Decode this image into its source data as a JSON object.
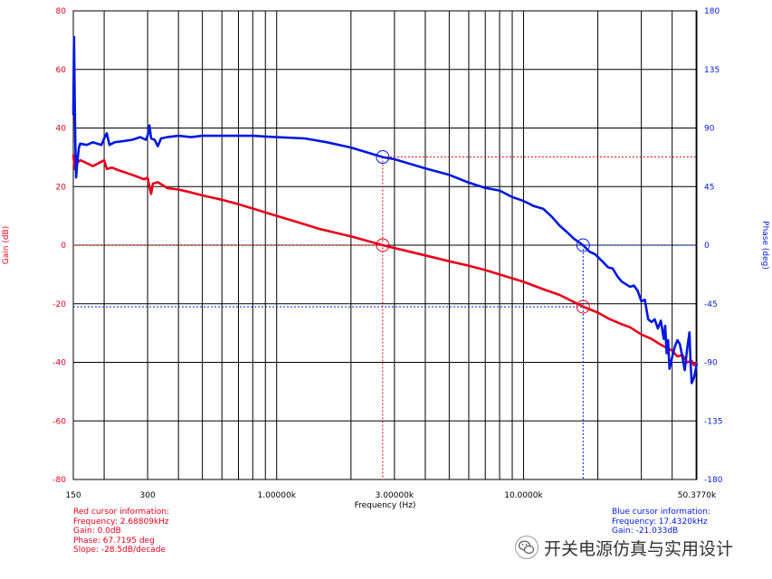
{
  "chart_data": {
    "type": "line",
    "xlabel": "Frequency (Hz)",
    "ylabel_left": "Gain (dB)",
    "ylabel_right": "Phase (deg)",
    "x_scale": "log",
    "xlim_hz": [
      150,
      50377
    ],
    "ylim_left": [
      -80,
      80
    ],
    "ylim_right": [
      -180,
      180
    ],
    "grid": true,
    "x_ticks": [
      {
        "hz": 150,
        "label": "150"
      },
      {
        "hz": 300,
        "label": "300"
      },
      {
        "hz": 1000,
        "label": "1.00000k"
      },
      {
        "hz": 3000,
        "label": "3.00000k"
      },
      {
        "hz": 10000,
        "label": "10.0000k"
      },
      {
        "hz": 50377,
        "label": "50.3770k"
      }
    ],
    "y_ticks_left": [
      "80",
      "60",
      "40",
      "20",
      "0",
      "-20",
      "-40",
      "-60",
      "-80"
    ],
    "y_ticks_right": [
      "180",
      "135",
      "90",
      "45",
      "0",
      "-45",
      "-90",
      "-135",
      "-180"
    ],
    "series": [
      {
        "name": "Gain",
        "axis": "left",
        "color": "#e8001a",
        "points": [
          [
            150,
            31
          ],
          [
            152,
            26
          ],
          [
            155,
            28
          ],
          [
            160,
            29
          ],
          [
            170,
            28
          ],
          [
            180,
            27
          ],
          [
            190,
            28
          ],
          [
            200,
            29
          ],
          [
            205,
            26
          ],
          [
            215,
            26.5
          ],
          [
            230,
            25.5
          ],
          [
            250,
            24.5
          ],
          [
            270,
            23.5
          ],
          [
            290,
            22.5
          ],
          [
            300,
            23
          ],
          [
            305,
            20
          ],
          [
            310,
            17.5
          ],
          [
            315,
            21
          ],
          [
            330,
            21.5
          ],
          [
            345,
            20.5
          ],
          [
            360,
            19.5
          ],
          [
            400,
            19
          ],
          [
            450,
            18
          ],
          [
            500,
            17
          ],
          [
            600,
            15.5
          ],
          [
            700,
            14
          ],
          [
            800,
            12.5
          ],
          [
            1000,
            10
          ],
          [
            1200,
            8
          ],
          [
            1500,
            5.5
          ],
          [
            2000,
            3
          ],
          [
            2688.09,
            0
          ],
          [
            3000,
            -1
          ],
          [
            4000,
            -3.5
          ],
          [
            5000,
            -5.5
          ],
          [
            6000,
            -7
          ],
          [
            7000,
            -8.5
          ],
          [
            8000,
            -10
          ],
          [
            10000,
            -12.5
          ],
          [
            12000,
            -15
          ],
          [
            14000,
            -17
          ],
          [
            17432,
            -21
          ],
          [
            20000,
            -23
          ],
          [
            22000,
            -25
          ],
          [
            25000,
            -27
          ],
          [
            27000,
            -28
          ],
          [
            30000,
            -30.5
          ],
          [
            33000,
            -32
          ],
          [
            36000,
            -34
          ],
          [
            38000,
            -35
          ],
          [
            40000,
            -36
          ],
          [
            42000,
            -38
          ],
          [
            44000,
            -37.5
          ],
          [
            46000,
            -40
          ],
          [
            48000,
            -39.5
          ],
          [
            49000,
            -41
          ],
          [
            50377,
            -40
          ]
        ]
      },
      {
        "name": "Phase",
        "axis": "right",
        "color": "#0019e0",
        "points": [
          [
            150,
            100
          ],
          [
            151,
            160
          ],
          [
            152,
            110
          ],
          [
            153,
            75
          ],
          [
            154,
            52
          ],
          [
            156,
            65
          ],
          [
            158,
            75
          ],
          [
            160,
            78
          ],
          [
            170,
            77
          ],
          [
            180,
            79
          ],
          [
            195,
            77
          ],
          [
            200,
            82
          ],
          [
            205,
            86
          ],
          [
            210,
            77
          ],
          [
            220,
            79
          ],
          [
            240,
            80
          ],
          [
            260,
            81
          ],
          [
            280,
            83
          ],
          [
            295,
            81
          ],
          [
            300,
            84
          ],
          [
            305,
            92
          ],
          [
            310,
            82
          ],
          [
            320,
            81
          ],
          [
            330,
            76
          ],
          [
            340,
            82
          ],
          [
            360,
            83
          ],
          [
            400,
            84
          ],
          [
            450,
            83
          ],
          [
            500,
            84
          ],
          [
            600,
            84
          ],
          [
            700,
            84
          ],
          [
            800,
            84
          ],
          [
            900,
            83.5
          ],
          [
            1000,
            83
          ],
          [
            1300,
            82
          ],
          [
            1600,
            79
          ],
          [
            2000,
            75
          ],
          [
            2688.09,
            67.72
          ],
          [
            3000,
            66
          ],
          [
            4000,
            59
          ],
          [
            5000,
            54
          ],
          [
            6000,
            48
          ],
          [
            7000,
            44
          ],
          [
            8000,
            42
          ],
          [
            9000,
            37
          ],
          [
            10000,
            34
          ],
          [
            11000,
            30
          ],
          [
            12000,
            28
          ],
          [
            13000,
            22
          ],
          [
            14000,
            15
          ],
          [
            15000,
            10
          ],
          [
            16000,
            5
          ],
          [
            17432,
            0
          ],
          [
            18500,
            -5
          ],
          [
            19500,
            -7
          ],
          [
            21000,
            -13
          ],
          [
            22000,
            -17
          ],
          [
            23000,
            -18
          ],
          [
            24000,
            -24
          ],
          [
            25000,
            -28
          ],
          [
            26000,
            -30
          ],
          [
            27000,
            -32
          ],
          [
            28000,
            -31
          ],
          [
            29000,
            -35
          ],
          [
            30000,
            -43
          ],
          [
            31000,
            -42
          ],
          [
            32000,
            -57
          ],
          [
            33000,
            -59
          ],
          [
            34000,
            -57
          ],
          [
            35000,
            -64
          ],
          [
            36000,
            -58
          ],
          [
            37000,
            -72
          ],
          [
            37500,
            -62
          ],
          [
            38000,
            -83
          ],
          [
            38500,
            -73
          ],
          [
            39000,
            -95
          ],
          [
            40000,
            -86
          ],
          [
            41000,
            -78
          ],
          [
            42000,
            -73
          ],
          [
            43000,
            -76
          ],
          [
            44000,
            -86
          ],
          [
            45000,
            -96
          ],
          [
            46000,
            -80
          ],
          [
            47000,
            -67
          ],
          [
            47500,
            -90
          ],
          [
            48000,
            -106
          ],
          [
            49000,
            -102
          ],
          [
            50377,
            -91
          ]
        ]
      }
    ],
    "cursors": [
      {
        "name": "Red cursor",
        "color": "#e8001a",
        "frequency_hz": 2688.09,
        "gain_db": 0.0,
        "phase_deg": 67.7195
      },
      {
        "name": "Blue cursor",
        "color": "#0019e0",
        "frequency_hz": 17432,
        "gain_db": -21.033,
        "phase_deg": 0
      }
    ]
  },
  "red_cursor_info": {
    "title": "Red cursor information:",
    "frequency": "Frequency: 2.68809kHz",
    "gain": "Gain: 0.0dB",
    "phase": "Phase: 67.7195 deg",
    "slope": "Slope: -28.5dB/decade"
  },
  "blue_cursor_info": {
    "title": "Blue cursor information:",
    "frequency": "Frequency: 17.4320kHz",
    "gain": "Gain: -21.033dB"
  },
  "watermark": {
    "logo_icon": "wechat-logo-icon",
    "text": "开关电源仿真与实用设计"
  }
}
